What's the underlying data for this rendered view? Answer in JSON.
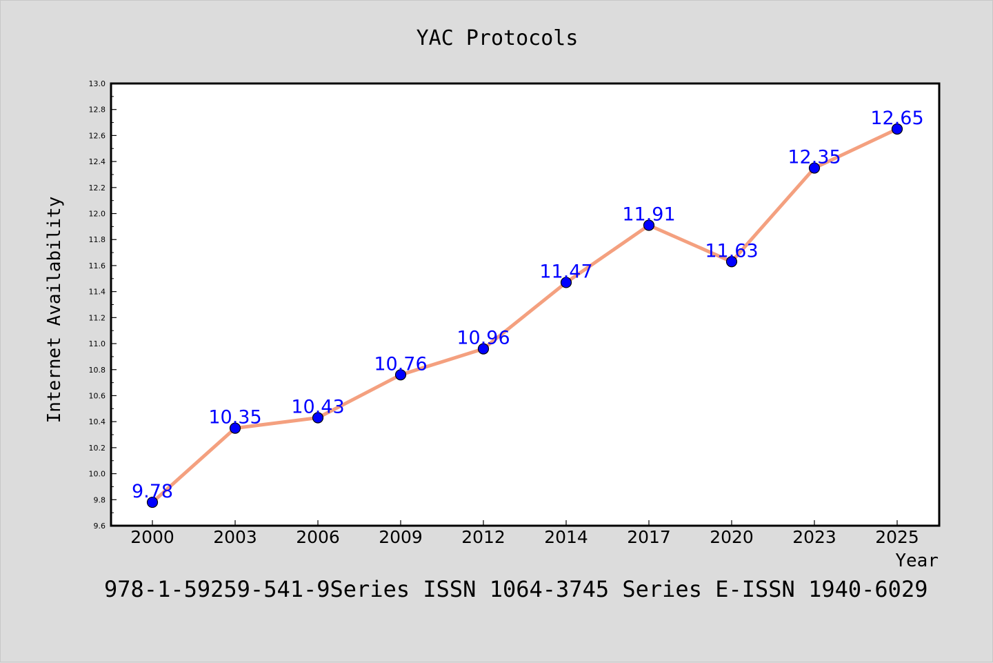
{
  "chart_data": {
    "type": "line",
    "title": "YAC Protocols",
    "xlabel": "Year",
    "ylabel": "Internet Availability",
    "categories": [
      "2000",
      "2003",
      "2006",
      "2009",
      "2012",
      "2014",
      "2017",
      "2020",
      "2023",
      "2025"
    ],
    "series": [
      {
        "values": [
          9.78,
          10.35,
          10.43,
          10.76,
          10.96,
          11.47,
          11.91,
          11.63,
          12.35,
          12.65
        ]
      }
    ],
    "data_labels": [
      "9.78",
      "10.35",
      "10.43",
      "10.76",
      "10.96",
      "11.47",
      "11.91",
      "11.63",
      "12.35",
      "12.65"
    ],
    "ylim": [
      9.6,
      13.0
    ],
    "yticks": [
      "9.6",
      "9.8",
      "10.0",
      "10.2",
      "10.4",
      "10.6",
      "10.8",
      "11.0",
      "11.2",
      "11.4",
      "11.6",
      "11.8",
      "12.0",
      "12.2",
      "12.4",
      "12.6",
      "12.8",
      "13.0"
    ],
    "grid": false,
    "line_color": "#f4a07f",
    "marker_color": "#0000ff",
    "label_color": "#0000ff",
    "footnote": "978-1-59259-541-9Series ISSN 1064-3745 Series E-ISSN 1940-6029"
  }
}
